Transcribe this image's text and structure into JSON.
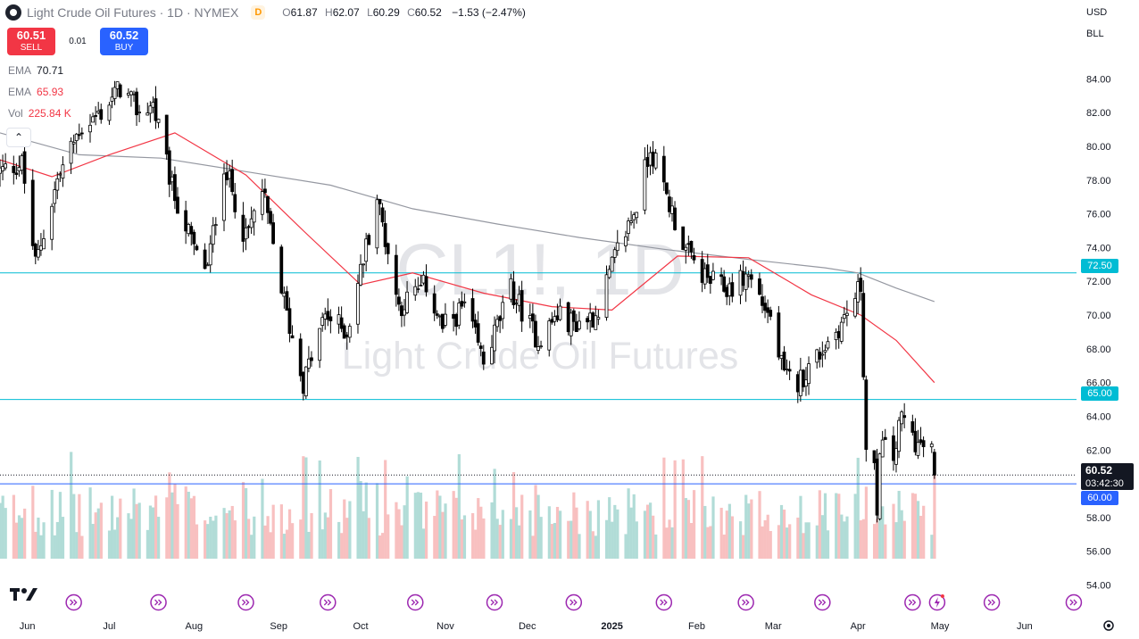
{
  "header": {
    "title": "Light Crude Oil Futures · 1D · NYMEX",
    "badge": "D",
    "o_key": "O",
    "o_val": "61.87",
    "h_key": "H",
    "h_val": "62.07",
    "l_key": "L",
    "l_val": "60.29",
    "c_key": "C",
    "c_val": "60.52",
    "change": "−1.53 (−2.47%)"
  },
  "trade": {
    "sell_price": "60.51",
    "sell_label": "SELL",
    "spread": "0.01",
    "buy_price": "60.52",
    "buy_label": "BUY"
  },
  "indicators": [
    {
      "name": "EMA",
      "value": "70.71",
      "color": "#787b86"
    },
    {
      "name": "EMA",
      "value": "65.93",
      "color": "#f23645"
    },
    {
      "name": "Vol",
      "value": "225.84 K",
      "color": "#f23645"
    }
  ],
  "collapse_icon": "chevron-up-icon",
  "scale_controls": {
    "currency": "USD",
    "unit": "BLL"
  },
  "watermark": {
    "symbol": "CL1!, 1D",
    "description": "Light Crude Oil Futures"
  },
  "horizontal_levels": [
    {
      "price": 72.5,
      "label": "72.50",
      "color": "#00bcd4"
    },
    {
      "price": 65.0,
      "label": "65.00",
      "color": "#00bcd4"
    },
    {
      "price": 60.0,
      "label": "60.00",
      "color": "#2962ff"
    }
  ],
  "current_price": {
    "price": "60.52",
    "countdown": "03:42:30"
  },
  "chart_data": {
    "type": "candlestick",
    "instrument": "Light Crude Oil Futures",
    "interval": "1D",
    "exchange": "NYMEX",
    "y_ticks": [
      "54.00",
      "56.00",
      "58.00",
      "60.00",
      "62.00",
      "64.00",
      "66.00",
      "68.00",
      "70.00",
      "72.00",
      "74.00",
      "76.00",
      "78.00",
      "80.00",
      "82.00",
      "84.00"
    ],
    "ylim": [
      53.5,
      85.5
    ],
    "x_ticks": [
      "Jun",
      "Jul",
      "Aug",
      "Sep",
      "Oct",
      "Nov",
      "Dec",
      "2025",
      "Feb",
      "Mar",
      "Apr",
      "May",
      "Jun"
    ],
    "x_range": [
      "2024-05-22",
      "2025-06-20"
    ],
    "colors": {
      "up": "#ffffff",
      "down": "#000000",
      "outline": "#000000",
      "vol_up": "#a8d8d3",
      "vol_down": "#f7b9b9",
      "ema_fast": "#f23645",
      "ema_slow": "#9598a1"
    },
    "price_anchors": [
      [
        "2024-05-22",
        78.5
      ],
      [
        "2024-05-30",
        79.0
      ],
      [
        "2024-06-04",
        73.0
      ],
      [
        "2024-06-12",
        78.0
      ],
      [
        "2024-06-20",
        81.0
      ],
      [
        "2024-06-28",
        82.0
      ],
      [
        "2024-07-05",
        83.5
      ],
      [
        "2024-07-12",
        82.0
      ],
      [
        "2024-07-17",
        82.5
      ],
      [
        "2024-07-24",
        77.5
      ],
      [
        "2024-08-02",
        73.5
      ],
      [
        "2024-08-06",
        72.8
      ],
      [
        "2024-08-12",
        79.0
      ],
      [
        "2024-08-20",
        74.5
      ],
      [
        "2024-08-26",
        77.4
      ],
      [
        "2024-09-04",
        70.0
      ],
      [
        "2024-09-10",
        66.0
      ],
      [
        "2024-09-18",
        70.0
      ],
      [
        "2024-09-26",
        69.0
      ],
      [
        "2024-10-07",
        77.0
      ],
      [
        "2024-10-15",
        70.5
      ],
      [
        "2024-10-25",
        71.8
      ],
      [
        "2024-10-31",
        69.2
      ],
      [
        "2024-11-08",
        70.5
      ],
      [
        "2024-11-15",
        67.2
      ],
      [
        "2024-11-25",
        71.5
      ],
      [
        "2024-12-05",
        68.5
      ],
      [
        "2024-12-12",
        70.0
      ],
      [
        "2024-12-18",
        69.5
      ],
      [
        "2024-12-26",
        70.0
      ],
      [
        "2025-01-03",
        73.8
      ],
      [
        "2025-01-10",
        76.5
      ],
      [
        "2025-01-15",
        80.0
      ],
      [
        "2025-01-20",
        77.5
      ],
      [
        "2025-01-28",
        73.8
      ],
      [
        "2025-02-04",
        72.2
      ],
      [
        "2025-02-12",
        71.5
      ],
      [
        "2025-02-20",
        72.4
      ],
      [
        "2025-02-28",
        69.8
      ],
      [
        "2025-03-05",
        66.3
      ],
      [
        "2025-03-10",
        66.0
      ],
      [
        "2025-03-20",
        68.2
      ],
      [
        "2025-03-26",
        69.5
      ],
      [
        "2025-04-02",
        71.7
      ],
      [
        "2025-04-03",
        66.9
      ],
      [
        "2025-04-04",
        62.0
      ],
      [
        "2025-04-07",
        60.8
      ],
      [
        "2025-04-08",
        57.5
      ],
      [
        "2025-04-09",
        62.4
      ],
      [
        "2025-04-14",
        61.5
      ],
      [
        "2025-04-17",
        64.0
      ],
      [
        "2025-04-23",
        62.3
      ],
      [
        "2025-04-28",
        62.0
      ],
      [
        "2025-04-29",
        60.52
      ]
    ],
    "ema_fast_anchors": [
      [
        "2024-05-22",
        79.2
      ],
      [
        "2024-06-10",
        78.2
      ],
      [
        "2024-07-01",
        79.5
      ],
      [
        "2024-07-25",
        80.8
      ],
      [
        "2024-08-20",
        78.3
      ],
      [
        "2024-09-10",
        75.0
      ],
      [
        "2024-10-01",
        71.8
      ],
      [
        "2024-10-20",
        72.5
      ],
      [
        "2024-11-15",
        71.3
      ],
      [
        "2024-12-10",
        70.5
      ],
      [
        "2025-01-01",
        70.3
      ],
      [
        "2025-01-25",
        73.5
      ],
      [
        "2025-02-20",
        73.4
      ],
      [
        "2025-03-15",
        71.2
      ],
      [
        "2025-04-02",
        70.0
      ],
      [
        "2025-04-15",
        68.5
      ],
      [
        "2025-04-29",
        66.0
      ]
    ],
    "ema_slow_anchors": [
      [
        "2024-05-22",
        80.8
      ],
      [
        "2024-06-20",
        79.5
      ],
      [
        "2024-07-20",
        79.3
      ],
      [
        "2024-08-20",
        78.5
      ],
      [
        "2024-09-20",
        77.7
      ],
      [
        "2024-10-20",
        76.3
      ],
      [
        "2024-11-20",
        75.4
      ],
      [
        "2024-12-20",
        74.6
      ],
      [
        "2025-01-20",
        73.9
      ],
      [
        "2025-02-20",
        73.3
      ],
      [
        "2025-03-20",
        72.8
      ],
      [
        "2025-04-01",
        72.5
      ],
      [
        "2025-04-15",
        71.6
      ],
      [
        "2025-04-29",
        70.8
      ]
    ],
    "last": {
      "open": 61.87,
      "high": 62.07,
      "low": 60.29,
      "close": 60.52
    }
  }
}
